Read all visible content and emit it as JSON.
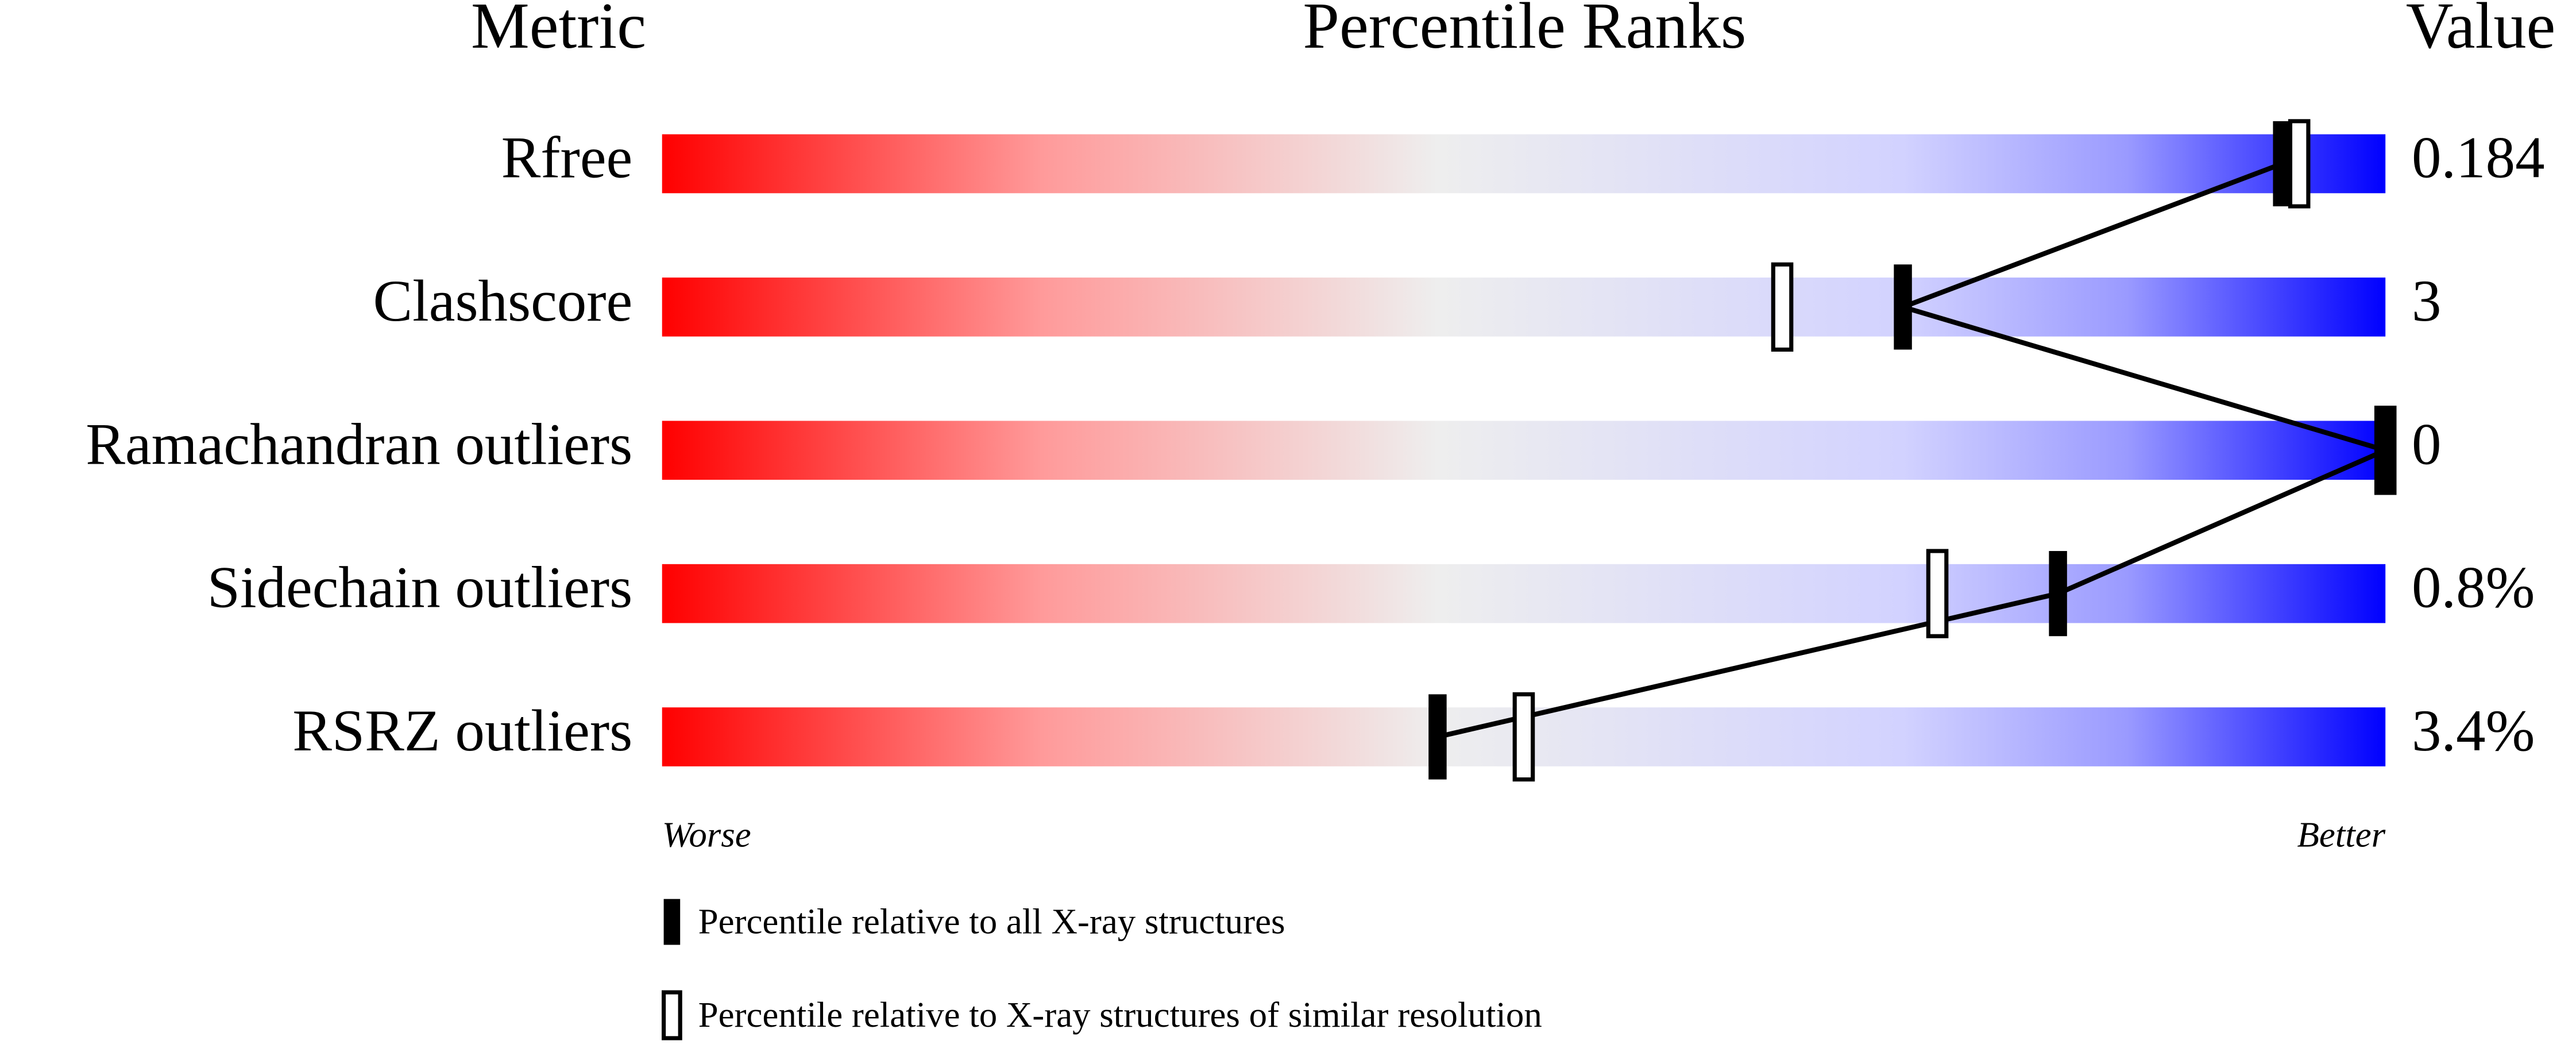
{
  "chart_data": {
    "type": "percentile-slider",
    "headers": {
      "metric": "Metric",
      "ranks": "Percentile Ranks",
      "value": "Value"
    },
    "categories": [
      "Rfree",
      "Clashscore",
      "Ramachandran outliers",
      "Sidechain outliers",
      "RSRZ outliers"
    ],
    "metric_values": [
      0.184,
      3,
      0,
      0.8,
      3.4
    ],
    "value_labels": [
      "0.184",
      "3",
      "0",
      "0.8%",
      "3.4%"
    ],
    "series": [
      {
        "name": "Percentile relative to all X-ray structures",
        "color": "#000000",
        "values": [
          94,
          72,
          100,
          81,
          45
        ]
      },
      {
        "name": "Percentile relative to X-ray structures of similar resolution",
        "color": "#ffffff",
        "values": [
          95,
          65,
          100,
          74,
          50
        ]
      }
    ],
    "xlim": [
      0,
      100
    ],
    "worse_label": "Worse",
    "better_label": "Better"
  }
}
